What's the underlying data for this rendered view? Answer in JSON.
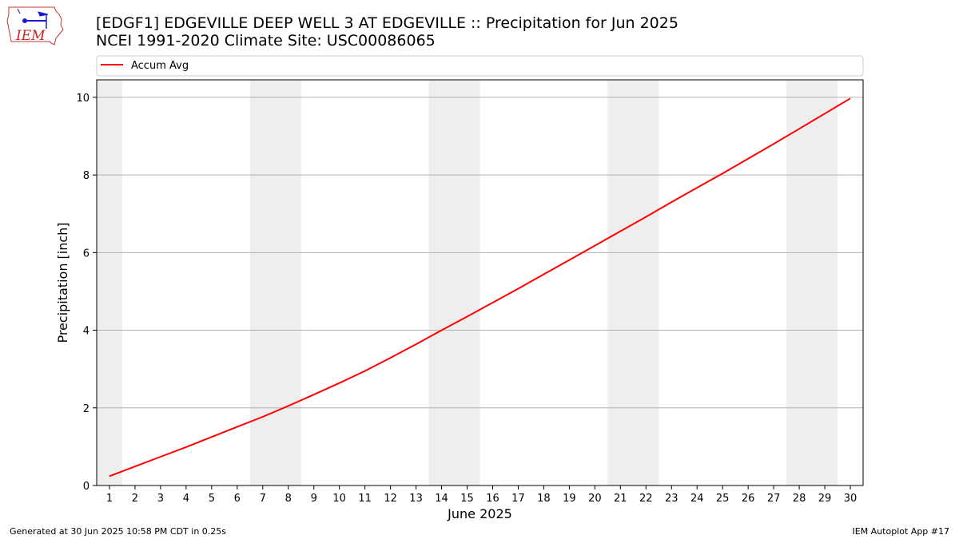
{
  "header": {
    "title_line1": "[EDGF1] EDGEVILLE DEEP WELL 3 AT EDGEVILLE :: Precipitation for Jun 2025",
    "title_line2": "NCEI 1991-2020 Climate Site: USC00086065"
  },
  "logo": {
    "text": "IEM",
    "icon": "iem-iowa-logo"
  },
  "footer": {
    "left": "Generated at 30 Jun 2025 10:58 PM CDT in 0.25s",
    "right": "IEM Autoplot App #17"
  },
  "colors": {
    "line": "#ff0000",
    "weekend_shade": "#eeeeee",
    "grid": "#b0b0b0"
  },
  "chart_data": {
    "type": "line",
    "title": "",
    "xlabel": "June 2025",
    "ylabel": "Precipitation [inch]",
    "x": [
      1,
      2,
      3,
      4,
      5,
      6,
      7,
      8,
      9,
      10,
      11,
      12,
      13,
      14,
      15,
      16,
      17,
      18,
      19,
      20,
      21,
      22,
      23,
      24,
      25,
      26,
      27,
      28,
      29,
      30
    ],
    "xlim": [
      0.5,
      30.5
    ],
    "ylim": [
      0,
      10.45
    ],
    "yticks": [
      0,
      2,
      4,
      6,
      8,
      10
    ],
    "xticks": [
      1,
      2,
      3,
      4,
      5,
      6,
      7,
      8,
      9,
      10,
      11,
      12,
      13,
      14,
      15,
      16,
      17,
      18,
      19,
      20,
      21,
      22,
      23,
      24,
      25,
      26,
      27,
      28,
      29,
      30
    ],
    "grid": "horizontal",
    "legend_position": "top",
    "shaded_weekends": [
      [
        0.5,
        1.5
      ],
      [
        6.5,
        8.5
      ],
      [
        13.5,
        15.5
      ],
      [
        20.5,
        22.5
      ],
      [
        27.5,
        29.5
      ]
    ],
    "series": [
      {
        "name": "Accum Avg",
        "values": [
          0.24,
          0.49,
          0.74,
          0.99,
          1.25,
          1.51,
          1.77,
          2.05,
          2.34,
          2.64,
          2.95,
          3.29,
          3.64,
          4.0,
          4.35,
          4.71,
          5.07,
          5.44,
          5.81,
          6.18,
          6.55,
          6.92,
          7.3,
          7.67,
          8.04,
          8.42,
          8.8,
          9.19,
          9.58,
          9.97
        ]
      }
    ]
  }
}
